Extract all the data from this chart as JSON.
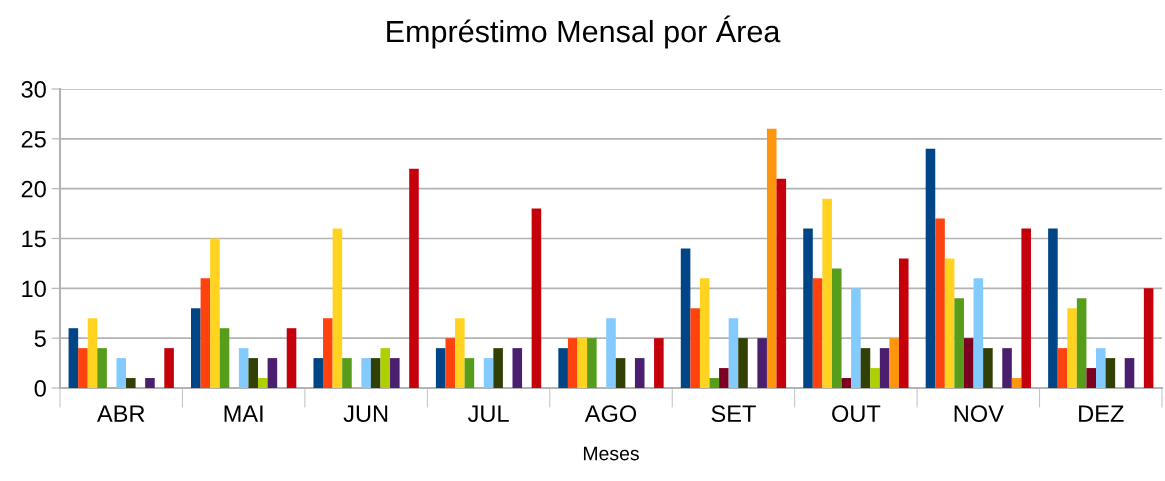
{
  "chart_data": {
    "type": "bar",
    "title": "Empréstimo Mensal por Área",
    "xlabel": "Meses",
    "categories": [
      "ABR",
      "MAI",
      "JUN",
      "JUL",
      "AGO",
      "SET",
      "OUT",
      "NOV",
      "DEZ"
    ],
    "series": [
      {
        "color": "#004586",
        "values": [
          6,
          8,
          3,
          4,
          4,
          14,
          16,
          24,
          16
        ]
      },
      {
        "color": "#ff420e",
        "values": [
          4,
          11,
          7,
          5,
          5,
          8,
          11,
          17,
          4
        ]
      },
      {
        "color": "#ffd320",
        "values": [
          7,
          15,
          16,
          7,
          5,
          11,
          19,
          13,
          8
        ]
      },
      {
        "color": "#579d1c",
        "values": [
          4,
          6,
          3,
          3,
          5,
          1,
          12,
          9,
          9
        ]
      },
      {
        "color": "#7e0021",
        "values": [
          0,
          0,
          0,
          0,
          0,
          2,
          1,
          5,
          2
        ]
      },
      {
        "color": "#83caff",
        "values": [
          3,
          4,
          3,
          3,
          7,
          7,
          10,
          11,
          4
        ]
      },
      {
        "color": "#314004",
        "values": [
          1,
          3,
          3,
          4,
          3,
          5,
          4,
          4,
          3
        ]
      },
      {
        "color": "#aecf00",
        "values": [
          0,
          1,
          4,
          0,
          0,
          0,
          2,
          0,
          0
        ]
      },
      {
        "color": "#4b1f6f",
        "values": [
          1,
          3,
          3,
          4,
          3,
          5,
          4,
          4,
          3
        ]
      },
      {
        "color": "#ff950e",
        "values": [
          0,
          0,
          0,
          0,
          0,
          26,
          5,
          1,
          0
        ]
      },
      {
        "color": "#c5000b",
        "values": [
          4,
          6,
          22,
          18,
          5,
          21,
          13,
          16,
          10
        ]
      }
    ],
    "ylim": [
      0,
      30
    ],
    "yticks": [
      0,
      5,
      10,
      15,
      20,
      25,
      30
    ],
    "grid": "y"
  }
}
